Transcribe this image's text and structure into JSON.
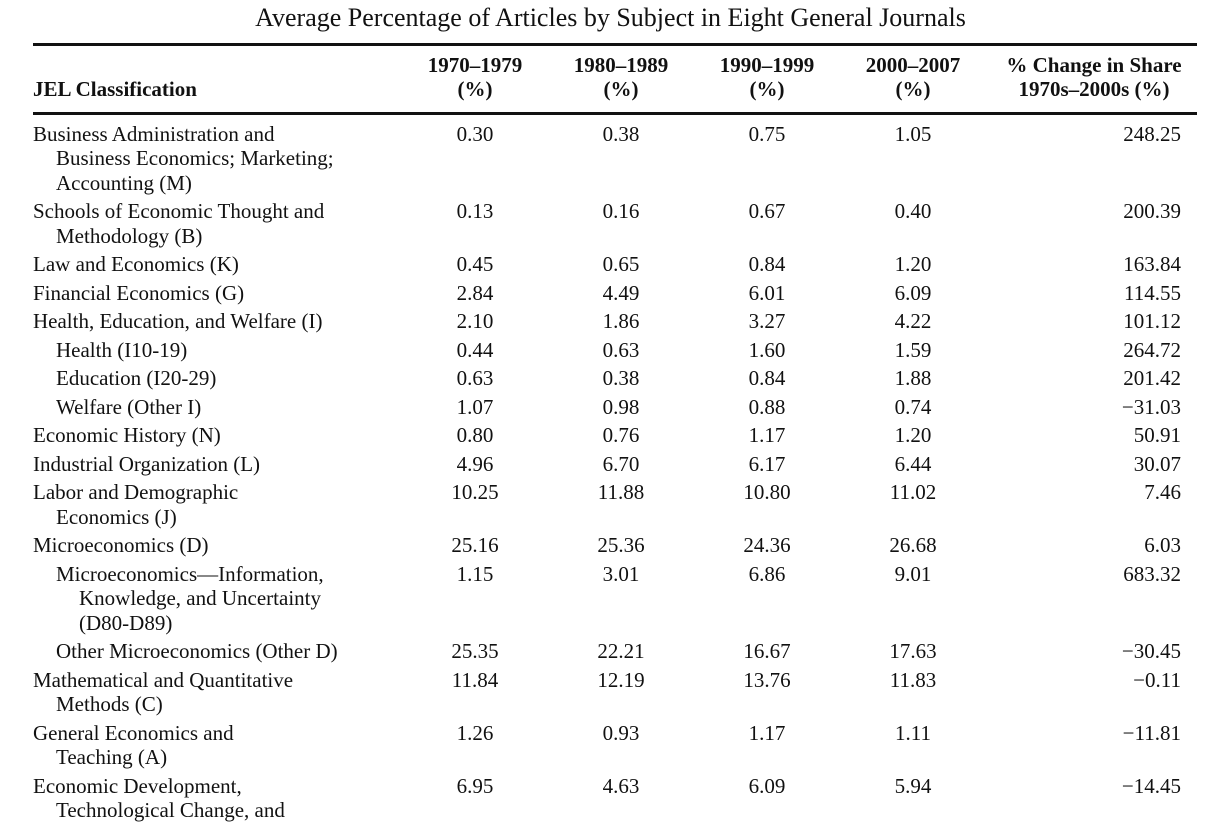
{
  "title": "Average Percentage of Articles by Subject in Eight General Journals",
  "header": {
    "label": "JEL Classification",
    "columns": [
      [
        "1970–1979",
        "(%)"
      ],
      [
        "1980–1989",
        "(%)"
      ],
      [
        "1990–1999",
        "(%)"
      ],
      [
        "2000–2007",
        "(%)"
      ],
      [
        "% Change in Share",
        "1970s–2000s (%)"
      ]
    ]
  },
  "rows": [
    {
      "label": [
        "Business Administration and",
        "Business Economics; Marketing;",
        "Accounting (M)"
      ],
      "values": [
        "0.30",
        "0.38",
        "0.75",
        "1.05",
        "248.25"
      ]
    },
    {
      "label": [
        "Schools of Economic Thought and",
        "Methodology (B)"
      ],
      "values": [
        "0.13",
        "0.16",
        "0.67",
        "0.40",
        "200.39"
      ]
    },
    {
      "label": [
        "Law and Economics (K)"
      ],
      "values": [
        "0.45",
        "0.65",
        "0.84",
        "1.20",
        "163.84"
      ]
    },
    {
      "label": [
        "Financial Economics (G)"
      ],
      "values": [
        "2.84",
        "4.49",
        "6.01",
        "6.09",
        "114.55"
      ]
    },
    {
      "label": [
        "Health, Education, and Welfare (I)"
      ],
      "values": [
        "2.10",
        "1.86",
        "3.27",
        "4.22",
        "101.12"
      ],
      "children": [
        {
          "label": [
            "Health (I10-19)"
          ],
          "values": [
            "0.44",
            "0.63",
            "1.60",
            "1.59",
            "264.72"
          ]
        },
        {
          "label": [
            "Education (I20-29)"
          ],
          "values": [
            "0.63",
            "0.38",
            "0.84",
            "1.88",
            "201.42"
          ]
        },
        {
          "label": [
            "Welfare (Other I)"
          ],
          "values": [
            "1.07",
            "0.98",
            "0.88",
            "0.74",
            "−31.03"
          ]
        }
      ]
    },
    {
      "label": [
        "Economic History (N)"
      ],
      "values": [
        "0.80",
        "0.76",
        "1.17",
        "1.20",
        "50.91"
      ]
    },
    {
      "label": [
        "Industrial Organization (L)"
      ],
      "values": [
        "4.96",
        "6.70",
        "6.17",
        "6.44",
        "30.07"
      ]
    },
    {
      "label": [
        "Labor and Demographic",
        "Economics (J)"
      ],
      "values": [
        "10.25",
        "11.88",
        "10.80",
        "11.02",
        "7.46"
      ]
    },
    {
      "label": [
        "Microeconomics (D)"
      ],
      "values": [
        "25.16",
        "25.36",
        "24.36",
        "26.68",
        "6.03"
      ],
      "children": [
        {
          "label": [
            "Microeconomics—Information,",
            "Knowledge, and Uncertainty",
            "(D80-D89)"
          ],
          "values": [
            "1.15",
            "3.01",
            "6.86",
            "9.01",
            "683.32"
          ]
        },
        {
          "label": [
            "Other Microeconomics (Other D)"
          ],
          "values": [
            "25.35",
            "22.21",
            "16.67",
            "17.63",
            "−30.45"
          ]
        }
      ]
    },
    {
      "label": [
        "Mathematical and Quantitative",
        "Methods (C)"
      ],
      "values": [
        "11.84",
        "12.19",
        "13.76",
        "11.83",
        "−0.11"
      ]
    },
    {
      "label": [
        "General Economics and",
        "Teaching (A)"
      ],
      "values": [
        "1.26",
        "0.93",
        "1.17",
        "1.11",
        "−11.81"
      ]
    },
    {
      "label": [
        "Economic Development,",
        "Technological Change, and"
      ],
      "values": [
        "6.95",
        "4.63",
        "6.09",
        "5.94",
        "−14.45"
      ]
    }
  ]
}
